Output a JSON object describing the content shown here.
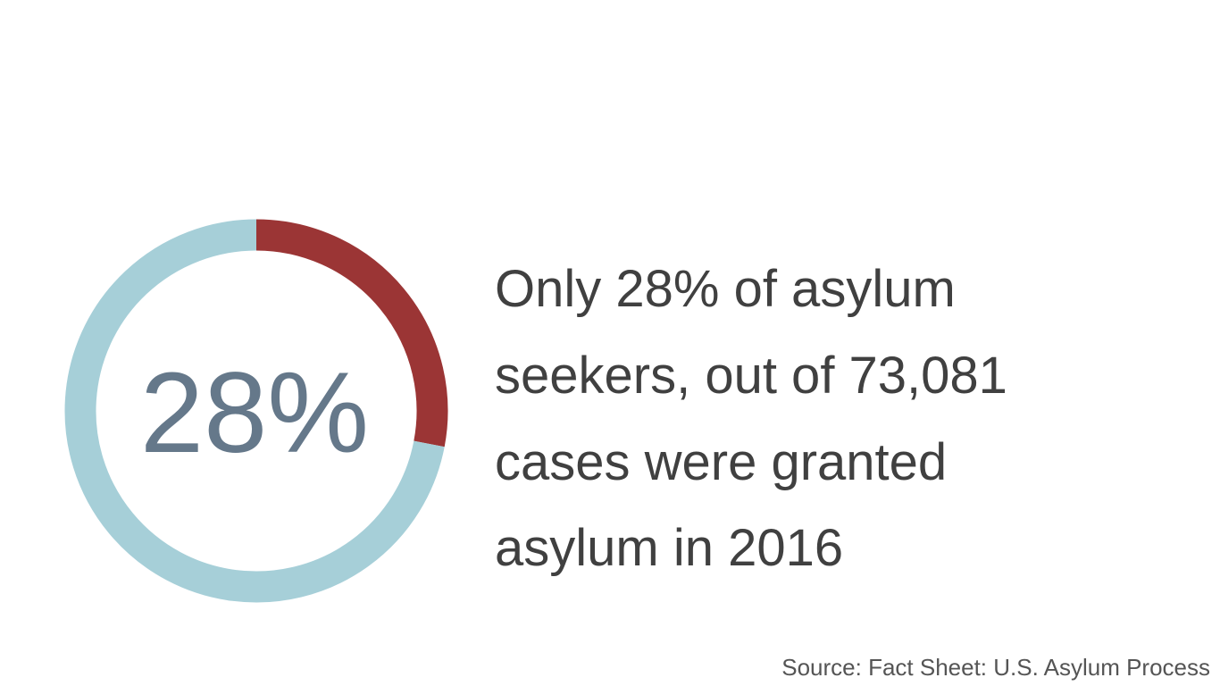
{
  "chart_data": {
    "type": "donut",
    "values": [
      28,
      72
    ],
    "value_labels": [
      "28%",
      null
    ],
    "colors": [
      "#9b3535",
      "#a6cfd8"
    ],
    "text_lines": [
      "Only 28% of asylum",
      "seekers, out of 73,081",
      "cases were granted",
      "asylum in 2016"
    ],
    "source": "Source: Fact Sheet: U.S. Asylum Process"
  }
}
